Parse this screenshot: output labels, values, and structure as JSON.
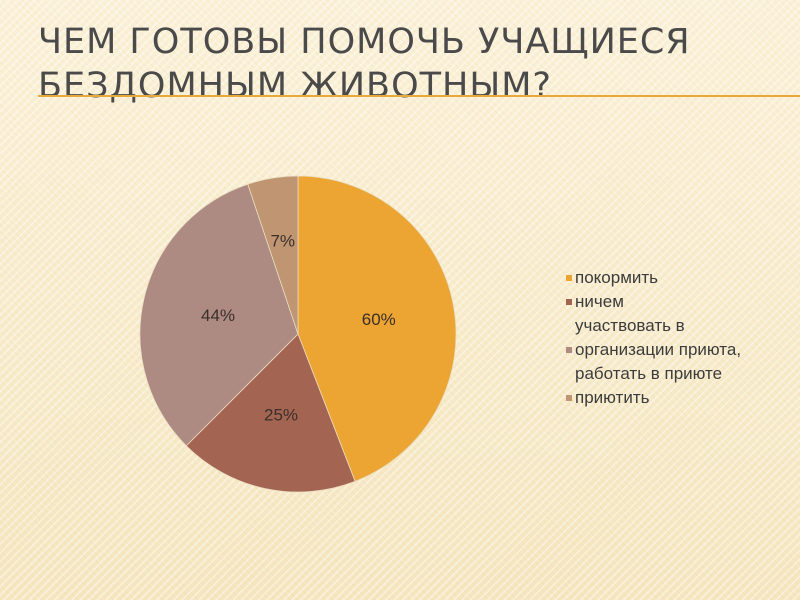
{
  "slide": {
    "title": "Чем готовы помочь учащиеся бездомным животным?"
  },
  "colors": {
    "accent_rule": "#e8a93b",
    "background": "#f9eed1"
  },
  "chart_data": {
    "type": "pie",
    "title": "",
    "legend_position": "right",
    "slices": [
      {
        "label": "покормить",
        "value_label": "60%",
        "value": 60,
        "color": "#eca533"
      },
      {
        "label": "ничем",
        "value_label": "25%",
        "value": 25,
        "color": "#a46452"
      },
      {
        "label": "участвовать в организации приюта, работать в приюте",
        "value_label": "44%",
        "value": 44,
        "color": "#ad8a82"
      },
      {
        "label": "приютить",
        "value_label": "7%",
        "value": 7,
        "color": "#c09572"
      }
    ],
    "legend_lines": [
      {
        "swatch_color": "#eca533",
        "text": "покормить"
      },
      {
        "swatch_color": "#a46452",
        "text": "ничем\nучаствовать в"
      },
      {
        "swatch_color": "#ad8a82",
        "text": "организации приюта,\nработать в приюте"
      },
      {
        "swatch_color": "#c09572",
        "text": "приютить"
      }
    ]
  }
}
